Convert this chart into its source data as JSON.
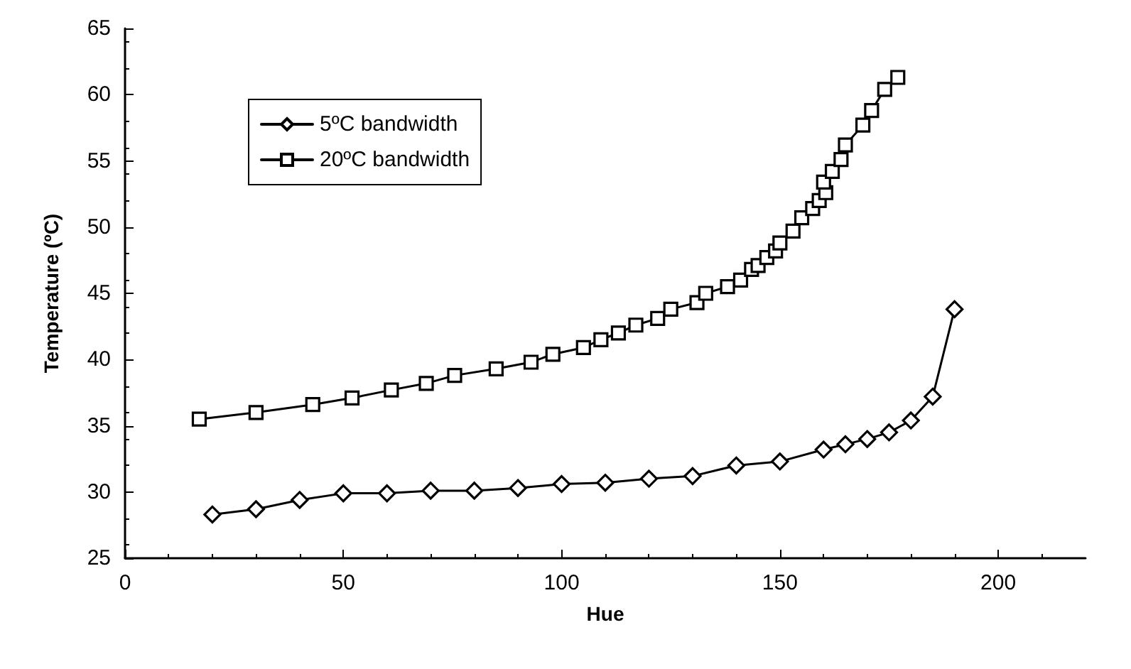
{
  "chart_data": {
    "type": "line",
    "xlabel": "Hue",
    "ylabel": "Temperature (ºC)",
    "xlim": [
      0,
      220
    ],
    "xticks": [
      0,
      50,
      100,
      150,
      200
    ],
    "ylim": [
      25,
      65
    ],
    "yticks": [
      25,
      30,
      35,
      40,
      45,
      50,
      55,
      60,
      65
    ],
    "grid": false,
    "legend": "top left",
    "line_style": "solid",
    "series": [
      {
        "name": "5ºC bandwidth",
        "color": "#000000",
        "marker": "diamond",
        "x": [
          20,
          30,
          40,
          50,
          60,
          70,
          80,
          90,
          100,
          110,
          120,
          130,
          140,
          150,
          160,
          165,
          170,
          175,
          180,
          185,
          190
        ],
        "values": [
          28.3,
          28.7,
          29.4,
          29.9,
          29.9,
          30.1,
          30.1,
          30.3,
          30.6,
          30.7,
          31.0,
          31.2,
          32.0,
          32.3,
          33.2,
          33.6,
          34.0,
          34.5,
          35.4,
          37.2,
          43.8
        ]
      },
      {
        "name": "20ºC bandwidth",
        "color": "#000000",
        "marker": "square",
        "x": [
          17,
          30,
          43,
          52,
          61,
          69,
          75.5,
          85,
          93,
          98,
          105,
          109,
          113,
          117,
          122,
          125,
          131,
          133,
          138,
          141,
          143.5,
          145,
          147,
          149,
          150,
          153,
          155,
          157.5,
          159,
          160.5,
          160,
          162,
          164,
          165,
          169,
          171,
          174,
          177
        ],
        "values": [
          35.5,
          36.0,
          36.6,
          37.1,
          37.7,
          38.2,
          38.8,
          39.3,
          39.8,
          40.4,
          40.9,
          41.5,
          42.0,
          42.6,
          43.1,
          43.8,
          44.3,
          45.0,
          45.5,
          46.0,
          46.8,
          47.1,
          47.7,
          48.2,
          48.8,
          49.7,
          50.7,
          51.4,
          52.0,
          52.6,
          53.4,
          54.2,
          55.1,
          56.2,
          57.7,
          58.8,
          60.4,
          61.3
        ]
      }
    ]
  }
}
